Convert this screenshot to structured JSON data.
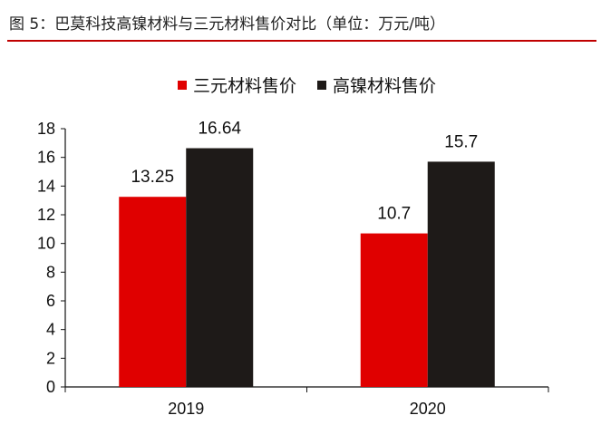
{
  "caption": "图 5：巴莫科技高镍材料与三元材料售价对比（单位：万元/吨）",
  "colors": {
    "caption_rule": "#c00000",
    "ternary": "#e00000",
    "high_nickel": "#1e1a18",
    "axis": "#111111"
  },
  "chart_data": {
    "type": "bar",
    "title": "",
    "xlabel": "",
    "ylabel": "",
    "categories": [
      "2019",
      "2020"
    ],
    "series": [
      {
        "name": "三元材料售价",
        "values": [
          13.25,
          10.7
        ],
        "labels": [
          "13.25",
          "10.7"
        ],
        "color": "#e00000"
      },
      {
        "name": "高镍材料售价",
        "values": [
          16.64,
          15.7
        ],
        "labels": [
          "16.64",
          "15.7"
        ],
        "color": "#1e1a18"
      }
    ],
    "ylim": [
      0,
      18
    ],
    "yticks": [
      0,
      2,
      4,
      6,
      8,
      10,
      12,
      14,
      16,
      18
    ],
    "grid": false,
    "legend": "top-center"
  }
}
